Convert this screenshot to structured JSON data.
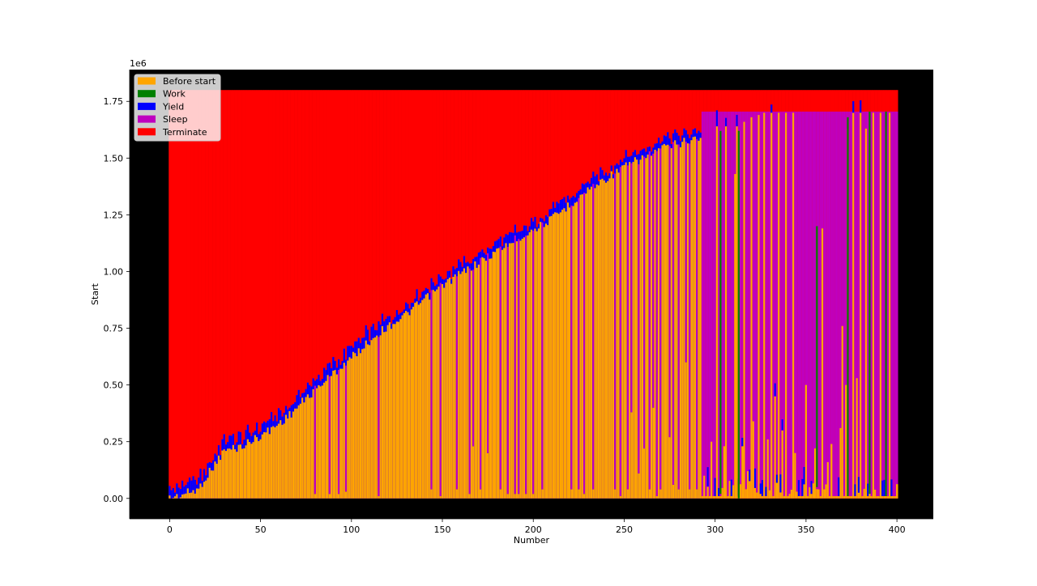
{
  "chart_data": {
    "type": "bar",
    "stacked": true,
    "title": "",
    "xlabel": "Number",
    "ylabel": "Start",
    "y_offset_text": "1e6",
    "xlim": [
      -22,
      420
    ],
    "ylim": [
      -90000,
      1890000
    ],
    "x_ticks": [
      0,
      50,
      100,
      150,
      200,
      250,
      300,
      350,
      400
    ],
    "x_tick_labels": [
      "0",
      "50",
      "100",
      "150",
      "200",
      "250",
      "300",
      "350",
      "400"
    ],
    "y_ticks": [
      0,
      250000,
      500000,
      750000,
      1000000,
      1250000,
      1500000,
      1750000
    ],
    "y_tick_labels": [
      "0.00",
      "0.25",
      "0.50",
      "0.75",
      "1.00",
      "1.25",
      "1.50",
      "1.75"
    ],
    "axes_background": "#000000",
    "legend": {
      "position": "upper left",
      "entries": [
        {
          "label": "Before start",
          "color": "#ffa500"
        },
        {
          "label": "Work",
          "color": "#008000"
        },
        {
          "label": "Yield",
          "color": "#0000ff"
        },
        {
          "label": "Sleep",
          "color": "#bf00bf"
        },
        {
          "label": "Terminate",
          "color": "#ff0000"
        }
      ]
    },
    "series_order": [
      "Before start",
      "Work",
      "Yield",
      "Sleep",
      "Terminate"
    ],
    "colors": {
      "before_start": "#ffa500",
      "work": "#008000",
      "yield": "#0000ff",
      "sleep": "#bf00bf",
      "terminate": "#ff0000"
    },
    "bar_count": 401,
    "x_range": [
      0,
      400
    ],
    "terminate_top": 1800000,
    "sleep_band_top": 1705000,
    "base_curve_points": [
      [
        0,
        20000
      ],
      [
        16,
        60000
      ],
      [
        18,
        90000
      ],
      [
        30,
        230000
      ],
      [
        40,
        250000
      ],
      [
        55,
        320000
      ],
      [
        65,
        380000
      ],
      [
        80,
        500000
      ],
      [
        100,
        640000
      ],
      [
        115,
        750000
      ],
      [
        130,
        830000
      ],
      [
        150,
        960000
      ],
      [
        170,
        1060000
      ],
      [
        190,
        1160000
      ],
      [
        210,
        1250000
      ],
      [
        230,
        1380000
      ],
      [
        250,
        1480000
      ],
      [
        270,
        1560000
      ],
      [
        290,
        1610000
      ],
      [
        310,
        1640000
      ],
      [
        325,
        1680000
      ],
      [
        335,
        1695000
      ],
      [
        400,
        1695000
      ]
    ],
    "yield_thickness_max": 90000,
    "sleep_dips": [
      {
        "x": 80,
        "to": 20000
      },
      {
        "x": 88,
        "to": 20000
      },
      {
        "x": 93,
        "to": 20000
      },
      {
        "x": 97,
        "to": 30000
      },
      {
        "x": 115,
        "to": 10000
      },
      {
        "x": 144,
        "to": 40000
      },
      {
        "x": 149,
        "to": 10000
      },
      {
        "x": 158,
        "to": 40000
      },
      {
        "x": 165,
        "to": 20000
      },
      {
        "x": 167,
        "to": 230000
      },
      {
        "x": 171,
        "to": 40000
      },
      {
        "x": 175,
        "to": 200000
      },
      {
        "x": 182,
        "to": 40000
      },
      {
        "x": 186,
        "to": 20000
      },
      {
        "x": 190,
        "to": 20000
      },
      {
        "x": 192,
        "to": 20000
      },
      {
        "x": 196,
        "to": 20000
      },
      {
        "x": 200,
        "to": 20000
      },
      {
        "x": 205,
        "to": 40000
      },
      {
        "x": 221,
        "to": 40000
      },
      {
        "x": 225,
        "to": 40000
      },
      {
        "x": 228,
        "to": 20000
      },
      {
        "x": 233,
        "to": 40000
      },
      {
        "x": 245,
        "to": 40000
      },
      {
        "x": 248,
        "to": 10000
      },
      {
        "x": 252,
        "to": 40000
      },
      {
        "x": 254,
        "to": 380000
      },
      {
        "x": 258,
        "to": 110000
      },
      {
        "x": 261,
        "to": 220000
      },
      {
        "x": 264,
        "to": 40000
      },
      {
        "x": 266,
        "to": 400000
      },
      {
        "x": 268,
        "to": 10000
      },
      {
        "x": 270,
        "to": 40000
      },
      {
        "x": 275,
        "to": 270000
      },
      {
        "x": 277,
        "to": 60000
      },
      {
        "x": 280,
        "to": 40000
      },
      {
        "x": 284,
        "to": 600000
      },
      {
        "x": 286,
        "to": 40000
      },
      {
        "x": 290,
        "to": 40000
      },
      {
        "x": 294,
        "to": 100000
      },
      {
        "x": 297,
        "to": 10000
      },
      {
        "x": 298,
        "to": 250000
      },
      {
        "x": 305,
        "to": 230000
      },
      {
        "x": 309,
        "to": 10000
      },
      {
        "x": 311,
        "to": 1430000
      },
      {
        "x": 315,
        "to": 230000
      },
      {
        "x": 318,
        "to": 120000
      },
      {
        "x": 321,
        "to": 340000
      },
      {
        "x": 325,
        "to": 20000
      },
      {
        "x": 329,
        "to": 260000
      },
      {
        "x": 333,
        "to": 450000
      },
      {
        "x": 335,
        "to": 20000
      },
      {
        "x": 337,
        "to": 300000
      },
      {
        "x": 341,
        "to": 20000
      },
      {
        "x": 344,
        "to": 200000
      },
      {
        "x": 347,
        "to": 10000
      },
      {
        "x": 350,
        "to": 500000
      },
      {
        "x": 353,
        "to": 20000
      },
      {
        "x": 355,
        "to": 220000
      },
      {
        "x": 357,
        "to": 40000
      },
      {
        "x": 360,
        "to": 40000
      },
      {
        "x": 362,
        "to": 160000
      },
      {
        "x": 364,
        "to": 240000
      },
      {
        "x": 366,
        "to": 10000
      },
      {
        "x": 369,
        "to": 310000
      },
      {
        "x": 371,
        "to": 10000
      },
      {
        "x": 374,
        "to": 10000
      },
      {
        "x": 378,
        "to": 530000
      },
      {
        "x": 380,
        "to": 10000
      },
      {
        "x": 384,
        "to": 10000
      },
      {
        "x": 386,
        "to": 10000
      },
      {
        "x": 389,
        "to": 10000
      },
      {
        "x": 392,
        "to": 10000
      },
      {
        "x": 395,
        "to": 10000
      },
      {
        "x": 398,
        "to": 10000
      }
    ],
    "orange_spikes_in_sleep": [
      {
        "x": 301,
        "top": 1640000
      },
      {
        "x": 306,
        "top": 1640000
      },
      {
        "x": 312,
        "top": 1640000
      },
      {
        "x": 316,
        "top": 1660000
      },
      {
        "x": 320,
        "top": 1680000
      },
      {
        "x": 324,
        "top": 1690000
      },
      {
        "x": 327,
        "top": 1700000
      },
      {
        "x": 331,
        "top": 1700000
      },
      {
        "x": 335,
        "top": 1700000
      },
      {
        "x": 339,
        "top": 1700000
      },
      {
        "x": 343,
        "top": 1700000
      },
      {
        "x": 373,
        "top": 1630000
      },
      {
        "x": 376,
        "top": 1700000
      },
      {
        "x": 380,
        "top": 1700000
      },
      {
        "x": 383,
        "top": 1630000
      },
      {
        "x": 387,
        "top": 1700000
      },
      {
        "x": 391,
        "top": 1700000
      },
      {
        "x": 396,
        "top": 1700000
      },
      {
        "x": 370,
        "top": 760000
      },
      {
        "x": 372,
        "top": 500000
      },
      {
        "x": 359,
        "top": 1190000
      }
    ],
    "work_bars": [
      {
        "x": 303,
        "from": 20000,
        "to": 1620000
      },
      {
        "x": 313,
        "from": 0,
        "to": 1620000
      },
      {
        "x": 356,
        "from": 50000,
        "to": 1200000
      },
      {
        "x": 373,
        "from": 10000,
        "to": 1680000
      },
      {
        "x": 385,
        "from": 20000,
        "to": 1705000
      },
      {
        "x": 394,
        "from": 10000,
        "to": 1705000
      }
    ]
  }
}
